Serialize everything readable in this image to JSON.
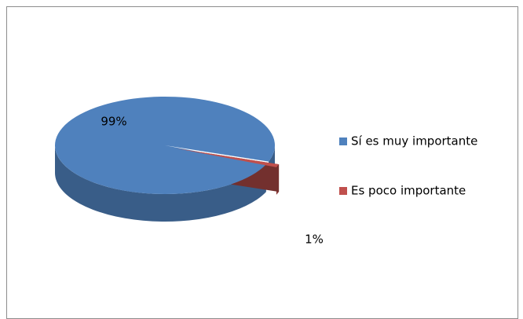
{
  "chart_data": {
    "type": "pie",
    "categories": [
      "Sí es muy importante",
      "Es poco importante"
    ],
    "values": [
      99,
      1
    ],
    "value_labels": [
      "99%",
      "1%"
    ],
    "colors": [
      "#4f81bd",
      "#c0504d"
    ],
    "legend": "right"
  }
}
